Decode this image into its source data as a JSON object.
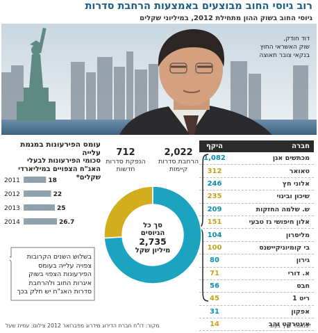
{
  "header": {
    "title": "רוב גיוסי החוב מבוצעים באמצעות הרחבת סדרות",
    "subtitle": "גיוסי החוב בשוק ההון מתחילת 2012, במיליוני שקלים"
  },
  "photo": {
    "caption_lines": [
      "דוד חודק,",
      "שוק האשראי החוץ",
      "בנקאי צובר תאוצה"
    ]
  },
  "chart_data": [
    {
      "type": "table",
      "columns": [
        "חברה",
        "היקף"
      ],
      "rows": [
        {
          "company": "מכתשים אגן",
          "amount": "1,082"
        },
        {
          "company": "טאואר",
          "amount": "312"
        },
        {
          "company": "אלוני חץ",
          "amount": "246"
        },
        {
          "company": "שיכון ובינוי",
          "amount": "235"
        },
        {
          "company": "ש. שלמה החזקות",
          "amount": "209"
        },
        {
          "company": "אלון חיפושי גז טבעי",
          "amount": "151"
        },
        {
          "company": "מליסרון",
          "amount": "104"
        },
        {
          "company": "בי קומיוניקיישנס",
          "amount": "100"
        },
        {
          "company": "גירון",
          "amount": "80"
        },
        {
          "company": "א. דורי",
          "amount": "71"
        },
        {
          "company": "חבס",
          "amount": "56"
        },
        {
          "company": "ריט 1",
          "amount": "45"
        },
        {
          "company": "אפקון",
          "amount": "31"
        },
        {
          "company": "אינטרקט זהב",
          "amount": "14"
        }
      ],
      "highlight_color": "#c8a21c",
      "value_color": "#0a8fb0"
    },
    {
      "type": "pie",
      "center_label": [
        "סך כל",
        "הגיוסים"
      ],
      "center_value": "2,735",
      "center_unit": "מיליון שקל",
      "slices": [
        {
          "label": "הרחבת סדרות קיימות",
          "value": 2022,
          "value_text": "2,022",
          "color": "#1ba3bf"
        },
        {
          "label": "הנפקת סדרות חדשות",
          "value": 712,
          "value_text": "712",
          "color": "#d2ad1e"
        }
      ]
    },
    {
      "type": "bar",
      "orientation": "horizontal",
      "title": "עומס הפירעונות במגמת עלייה",
      "subtitle": "סכומי הפירעונות לבעלי האג\"ח הצפויים במיליארדי שקלים*",
      "categories": [
        "2011",
        "2012",
        "2013",
        "2014"
      ],
      "values": [
        18,
        22,
        25,
        26.7
      ],
      "value_labels": [
        "18",
        "22",
        "25",
        "26.7"
      ],
      "bar_color": "#8fa2ad"
    }
  ],
  "callout": {
    "text": "בשלוש השנים הקרובות צפויה עלייה בעומס הפירעונות הצפוי בשוק איגרות החוב ולהרחבת סדרות האג\"ח יש חלק בכך"
  },
  "footer": {
    "source": "מקור: דו\"ח חברת הדירוג מידרוג מפברואר 2012 צילום: עמית שעל",
    "credit": "*במונחי ערך נקוב"
  }
}
